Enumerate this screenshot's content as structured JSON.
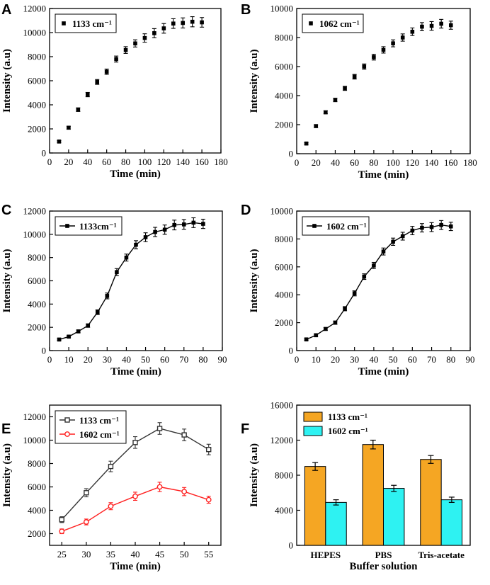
{
  "figure": {
    "panels": [
      "A",
      "B",
      "C",
      "D",
      "E",
      "F"
    ]
  },
  "chart_data": [
    {
      "panel": "A",
      "type": "scatter",
      "xlabel": "Time (min)",
      "ylabel": "Intensity (a.u)",
      "xlim": [
        0,
        180
      ],
      "ylim": [
        0,
        12000
      ],
      "xticks": [
        "0",
        "20",
        "40",
        "60",
        "80",
        "100",
        "120",
        "140",
        "160",
        "180"
      ],
      "yticks": [
        "0",
        "2000",
        "4000",
        "6000",
        "8000",
        "10000",
        "12000"
      ],
      "legend_position": "top-left",
      "series": [
        {
          "name": "1133 cm⁻¹",
          "color": "#000000",
          "marker": "square",
          "line": false,
          "x": [
            10,
            20,
            30,
            40,
            50,
            60,
            70,
            80,
            90,
            100,
            110,
            120,
            130,
            140,
            150,
            160
          ],
          "y": [
            950,
            2100,
            3600,
            4850,
            5900,
            6750,
            7800,
            8550,
            9100,
            9550,
            9950,
            10350,
            10750,
            10800,
            10900,
            10850
          ],
          "err": [
            80,
            120,
            150,
            180,
            200,
            220,
            250,
            280,
            300,
            350,
            380,
            400,
            400,
            420,
            420,
            400
          ]
        }
      ]
    },
    {
      "panel": "B",
      "type": "scatter",
      "xlabel": "Time (min)",
      "ylabel": "Intensity (a.u)",
      "xlim": [
        0,
        180
      ],
      "ylim": [
        0,
        10000
      ],
      "xticks": [
        "0",
        "20",
        "40",
        "60",
        "80",
        "100",
        "120",
        "140",
        "160",
        "180"
      ],
      "yticks": [
        "0",
        "2000",
        "4000",
        "6000",
        "8000",
        "10000"
      ],
      "legend_position": "top-left",
      "series": [
        {
          "name": "1062 cm⁻¹",
          "color": "#000000",
          "marker": "square",
          "line": false,
          "x": [
            10,
            20,
            30,
            40,
            50,
            60,
            70,
            80,
            90,
            100,
            110,
            120,
            130,
            140,
            150,
            160
          ],
          "y": [
            700,
            1900,
            2850,
            3700,
            4500,
            5300,
            6000,
            6650,
            7150,
            7600,
            8000,
            8400,
            8750,
            8800,
            8950,
            8850
          ],
          "err": [
            60,
            80,
            100,
            120,
            140,
            160,
            180,
            200,
            220,
            240,
            250,
            260,
            280,
            300,
            300,
            280
          ]
        }
      ]
    },
    {
      "panel": "C",
      "type": "line",
      "xlabel": "Time (min)",
      "ylabel": "Intensity (a.u)",
      "xlim": [
        0,
        90
      ],
      "ylim": [
        0,
        12000
      ],
      "xticks": [
        "0",
        "10",
        "20",
        "30",
        "40",
        "50",
        "60",
        "70",
        "80",
        "90"
      ],
      "yticks": [
        "0",
        "2000",
        "4000",
        "6000",
        "8000",
        "10000",
        "12000"
      ],
      "legend_position": "top-left",
      "series": [
        {
          "name": "1133cm⁻¹",
          "color": "#000000",
          "marker": "square",
          "line": true,
          "x": [
            5,
            10,
            15,
            20,
            25,
            30,
            35,
            40,
            45,
            50,
            55,
            60,
            65,
            70,
            75,
            80
          ],
          "y": [
            950,
            1200,
            1650,
            2150,
            3300,
            4700,
            6750,
            8000,
            9100,
            9750,
            10200,
            10400,
            10800,
            10850,
            11000,
            10900
          ],
          "err": [
            80,
            100,
            120,
            150,
            200,
            250,
            300,
            300,
            350,
            380,
            400,
            400,
            420,
            420,
            420,
            400
          ]
        }
      ]
    },
    {
      "panel": "D",
      "type": "line",
      "xlabel": "Time (min)",
      "ylabel": "Intensity (a.u)",
      "xlim": [
        0,
        90
      ],
      "ylim": [
        0,
        10000
      ],
      "xticks": [
        "0",
        "10",
        "20",
        "30",
        "40",
        "50",
        "60",
        "70",
        "80",
        "90"
      ],
      "yticks": [
        "0",
        "2000",
        "4000",
        "6000",
        "8000",
        "10000"
      ],
      "legend_position": "top-left",
      "series": [
        {
          "name": "1602 cm⁻¹",
          "color": "#000000",
          "marker": "square",
          "line": true,
          "x": [
            5,
            10,
            15,
            20,
            25,
            30,
            35,
            40,
            45,
            50,
            55,
            60,
            65,
            70,
            75,
            80
          ],
          "y": [
            800,
            1100,
            1550,
            2000,
            3000,
            4100,
            5300,
            6100,
            7100,
            7800,
            8200,
            8600,
            8800,
            8850,
            9000,
            8900
          ],
          "err": [
            60,
            80,
            100,
            120,
            150,
            180,
            200,
            220,
            250,
            260,
            280,
            300,
            300,
            320,
            320,
            300
          ]
        }
      ]
    },
    {
      "panel": "E",
      "type": "line",
      "xlabel": "Time (min)",
      "ylabel": "Intensity (a.u)",
      "xlim": [
        22.5,
        57.5
      ],
      "ylim": [
        1000,
        13000
      ],
      "xticks": [
        "25",
        "30",
        "35",
        "40",
        "45",
        "50",
        "55"
      ],
      "yticks": [
        "2000",
        "4000",
        "6000",
        "8000",
        "10000",
        "12000"
      ],
      "legend_position": "top-left",
      "series": [
        {
          "name": "1133 cm⁻¹",
          "color": "#333333",
          "marker": "square-open",
          "line": true,
          "x": [
            25,
            30,
            35,
            40,
            45,
            50,
            55
          ],
          "y": [
            3200,
            5500,
            7750,
            9800,
            11000,
            10450,
            9200
          ],
          "err": [
            250,
            350,
            450,
            500,
            500,
            500,
            450
          ]
        },
        {
          "name": "1602 cm⁻¹",
          "color": "#ff2020",
          "marker": "circle-open",
          "line": true,
          "x": [
            25,
            30,
            35,
            40,
            45,
            50,
            55
          ],
          "y": [
            2200,
            3000,
            4350,
            5200,
            6000,
            5600,
            4900
          ],
          "err": [
            200,
            250,
            300,
            350,
            400,
            350,
            300
          ]
        }
      ]
    },
    {
      "panel": "F",
      "type": "bar",
      "xlabel": "Buffer solution",
      "ylabel": "Intensity (a.u)",
      "ylim": [
        0,
        16000
      ],
      "yticks": [
        "0",
        "4000",
        "8000",
        "12000",
        "16000"
      ],
      "categories": [
        "HEPES",
        "PBS",
        "Tris-acetate"
      ],
      "legend_position": "top-left",
      "series": [
        {
          "name": "1133 cm⁻¹",
          "color": "#f5a623",
          "values": [
            9000,
            11500,
            9800
          ],
          "err": [
            450,
            500,
            450
          ]
        },
        {
          "name": "1602 cm⁻¹",
          "color": "#2ef2f2",
          "values": [
            4900,
            6500,
            5200
          ],
          "err": [
            300,
            350,
            300
          ]
        }
      ]
    }
  ]
}
